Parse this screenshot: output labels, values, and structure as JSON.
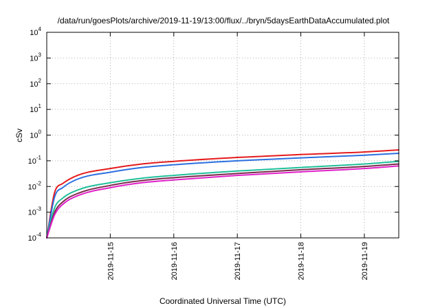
{
  "chart_data": {
    "type": "line",
    "title": "/data/run/goesPlots/archive/2019-11-19/13:00/flux/../bryn/5daysEarthDataAccumulated.plot",
    "xlabel": "Coordinated Universal Time (UTC)",
    "ylabel": "cSv",
    "y_scale": "log",
    "ylim": [
      0.0001,
      10000
    ],
    "xlim": [
      "2019-11-14 00:00",
      "2019-11-19 13:00"
    ],
    "grid": true,
    "x_ticks": [
      "2019-11-15",
      "2019-11-16",
      "2019-11-17",
      "2019-11-18",
      "2019-11-19"
    ],
    "y_ticks": [
      {
        "base": "10",
        "exp": "-4",
        "value": 0.0001
      },
      {
        "base": "10",
        "exp": "-3",
        "value": 0.001
      },
      {
        "base": "10",
        "exp": "-2",
        "value": 0.01
      },
      {
        "base": "10",
        "exp": "-1",
        "value": 0.1
      },
      {
        "base": "10",
        "exp": "0",
        "value": 1
      },
      {
        "base": "10",
        "exp": "1",
        "value": 10
      },
      {
        "base": "10",
        "exp": "2",
        "value": 100
      },
      {
        "base": "10",
        "exp": "3",
        "value": 1000
      },
      {
        "base": "10",
        "exp": "4",
        "value": 10000
      }
    ],
    "x": [
      "2019-11-14 00:00",
      "2019-11-14 03:00",
      "2019-11-14 06:00",
      "2019-11-14 12:00",
      "2019-11-15 00:00",
      "2019-11-15 12:00",
      "2019-11-16 00:00",
      "2019-11-17 00:00",
      "2019-11-18 00:00",
      "2019-11-19 00:00",
      "2019-11-19 13:00"
    ],
    "series": [
      {
        "color": "#e41a1c",
        "values": [
          0.0001,
          0.006,
          0.013,
          0.028,
          0.05,
          0.075,
          0.095,
          0.135,
          0.175,
          0.22,
          0.265
        ]
      },
      {
        "color": "#2b6fe0",
        "values": [
          0.0001,
          0.004,
          0.009,
          0.02,
          0.036,
          0.055,
          0.07,
          0.1,
          0.13,
          0.165,
          0.195
        ]
      },
      {
        "color": "#1fbf99",
        "values": [
          0.0001,
          0.0015,
          0.0035,
          0.0075,
          0.014,
          0.021,
          0.027,
          0.04,
          0.055,
          0.075,
          0.095
        ]
      },
      {
        "color": "#7a2a4a",
        "values": [
          0.0001,
          0.001,
          0.0025,
          0.0055,
          0.011,
          0.017,
          0.022,
          0.032,
          0.045,
          0.06,
          0.075
        ]
      },
      {
        "color": "#e020c8",
        "values": [
          0.0001,
          0.0008,
          0.002,
          0.0045,
          0.009,
          0.014,
          0.018,
          0.027,
          0.037,
          0.05,
          0.063
        ]
      }
    ]
  }
}
